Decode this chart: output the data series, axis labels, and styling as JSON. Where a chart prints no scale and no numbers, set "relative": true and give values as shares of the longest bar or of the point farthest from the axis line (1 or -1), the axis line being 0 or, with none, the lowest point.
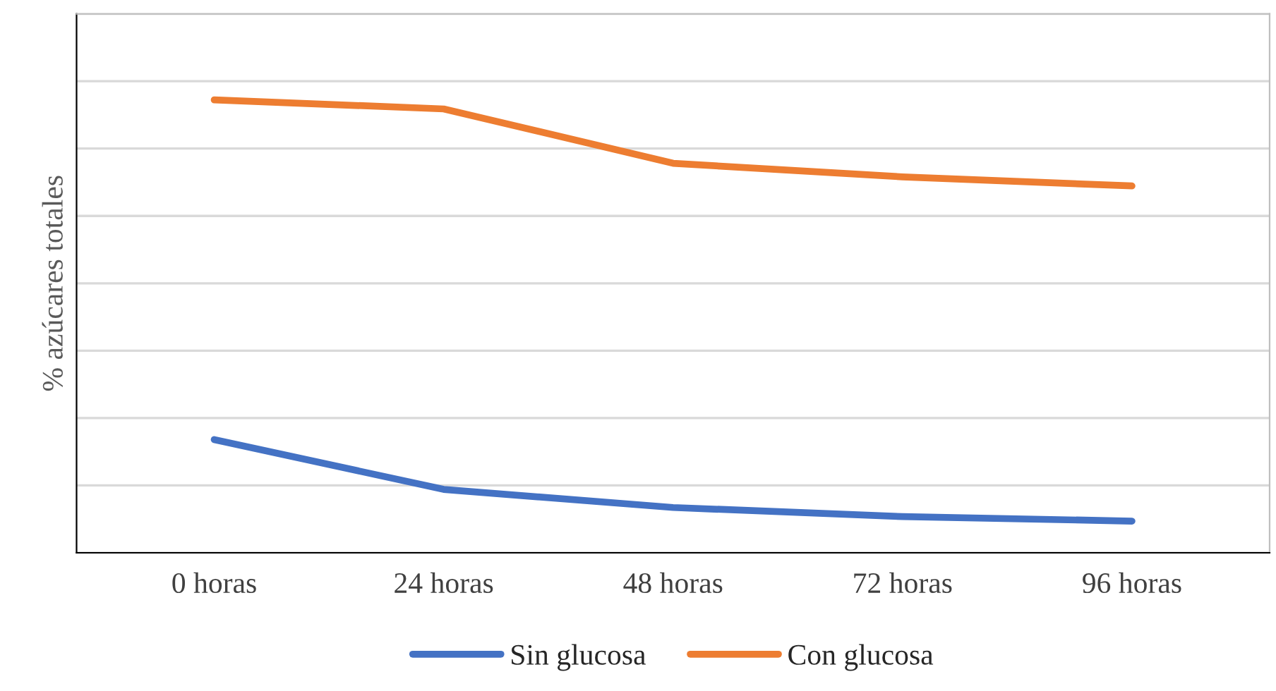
{
  "chart_data": {
    "type": "line",
    "ylabel": "% azúcares totales",
    "relative": true,
    "categories": [
      "0 horas",
      "24 horas",
      "48 horas",
      "72 horas",
      "96 horas"
    ],
    "series": [
      {
        "name": "Sin glucosa",
        "color": "#4472c4",
        "values": [
          0.25,
          0.14,
          0.1,
          0.08,
          0.07
        ]
      },
      {
        "name": "Con glucosa",
        "color": "#ed7d31",
        "values": [
          1,
          0.98,
          0.86,
          0.83,
          0.81
        ]
      }
    ],
    "grid": "y",
    "legend": "bottom",
    "marker": "none",
    "line_style": "solid"
  }
}
